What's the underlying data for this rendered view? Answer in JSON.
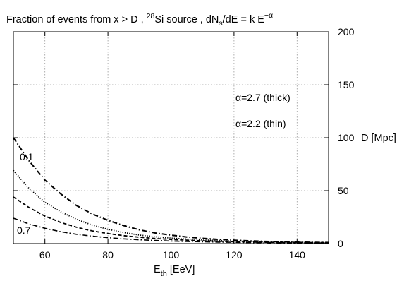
{
  "chart_data": {
    "type": "line",
    "title": "Fraction of events from x > D ,  ²⁸Si source ,  dNₛ/dE = k E⁻ᵅ",
    "title_parts": {
      "prefix": "Fraction of events from x > D ,  ",
      "iso_mass": "28",
      "iso_sym": "Si source ,  dN",
      "sub_s": "s",
      "mid": "/dE = k E",
      "sup_alpha": "−α"
    },
    "xlabel": {
      "main": "E",
      "sub": "th",
      "unit": " [EeV]"
    },
    "ylabel_right": "D [Mpc]",
    "xlim": [
      50,
      150
    ],
    "ylim": [
      0,
      200
    ],
    "xticks": [
      60,
      80,
      100,
      120,
      140
    ],
    "yticks": [
      0,
      50,
      100,
      150,
      200
    ],
    "grid": true,
    "annotations": [
      {
        "text": "α=2.7  (thick)"
      },
      {
        "text": "α=2.2  (thin)"
      },
      {
        "text": "0.1"
      },
      {
        "text": "0.7"
      }
    ],
    "x": [
      50,
      55,
      60,
      65,
      70,
      75,
      80,
      85,
      90,
      95,
      100,
      105,
      110,
      115,
      120,
      125,
      130,
      135,
      140,
      145,
      150
    ],
    "series": [
      {
        "style": "dash-dot",
        "width": 2.0,
        "values": [
          100,
          78,
          60,
          47,
          36,
          28,
          22,
          17,
          13,
          10,
          8,
          6.2,
          5,
          4,
          3.2,
          2.6,
          2.1,
          1.7,
          1.4,
          1.2,
          1
        ]
      },
      {
        "style": "dotted",
        "width": 1.8,
        "values": [
          69,
          52,
          39,
          30,
          23,
          17.5,
          13.5,
          10.5,
          8,
          6.5,
          5.2,
          4.3,
          3.5,
          2.9,
          2.4,
          2,
          1.7,
          1.4,
          1.2,
          1,
          0.9
        ]
      },
      {
        "style": "dashed",
        "width": 1.8,
        "values": [
          44,
          34,
          26,
          20,
          15.5,
          12,
          9.5,
          7.5,
          6,
          4.8,
          3.9,
          3.2,
          2.6,
          2.2,
          1.8,
          1.5,
          1.3,
          1.1,
          1,
          0.9,
          0.8
        ]
      },
      {
        "style": "dash-dot",
        "width": 1.6,
        "values": [
          24,
          18.5,
          14.5,
          11.3,
          8.8,
          7,
          5.6,
          4.5,
          3.6,
          2.9,
          2.4,
          2,
          1.7,
          1.4,
          1.2,
          1,
          0.9,
          0.8,
          0.7,
          0.6,
          0.5
        ]
      }
    ]
  }
}
